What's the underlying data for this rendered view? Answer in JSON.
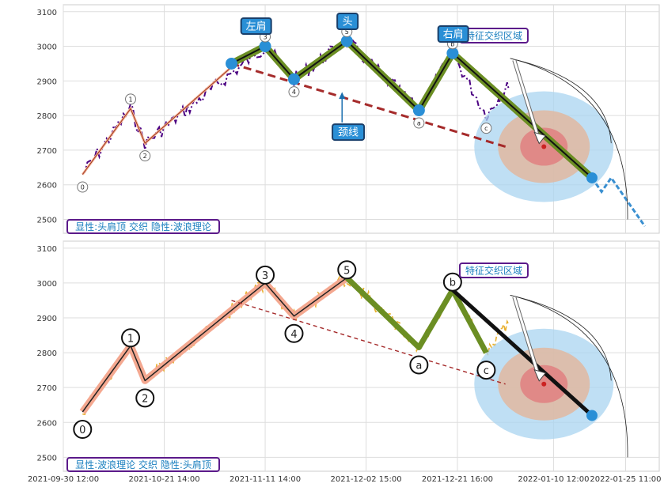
{
  "chart_data": [
    {
      "type": "line",
      "panel": "top",
      "ylim": [
        2460,
        3120
      ],
      "yticks": [
        2500,
        2600,
        2700,
        2800,
        2900,
        3000,
        3100
      ],
      "grid": true,
      "price_series_color": "#4b0082",
      "series": [
        {
          "kind": "wave-upper",
          "color": "#e06040",
          "points": [
            [
              "2021-10-04",
              2630
            ],
            [
              "2021-10-14",
              2820
            ],
            [
              "2021-10-17",
              2720
            ],
            [
              "2021-11-04",
              2940
            ]
          ]
        },
        {
          "kind": "head-shoulders",
          "color": "#6b8e23",
          "points": [
            [
              "2021-11-04",
              2950
            ],
            [
              "2021-11-11",
              3000
            ],
            [
              "2021-11-17",
              2905
            ],
            [
              "2021-11-28",
              3015
            ],
            [
              "2021-12-13",
              2815
            ],
            [
              "2021-12-20",
              2980
            ],
            [
              "2022-01-18",
              2620
            ]
          ]
        },
        {
          "kind": "neckline",
          "color": "#a52a2a",
          "points": [
            [
              "2021-11-04",
              2950
            ],
            [
              "2021-12-31",
              2710
            ]
          ]
        },
        {
          "kind": "forecast",
          "color": "#3a8fd0",
          "points": [
            [
              "2022-01-18",
              2620
            ],
            [
              "2022-01-20",
              2580
            ],
            [
              "2022-01-22",
              2620
            ],
            [
              "2022-01-29",
              2480
            ]
          ]
        }
      ],
      "target": {
        "x": "2022-01-08",
        "y": 2710
      },
      "labels": {
        "left_shoulder": "左肩",
        "head": "头",
        "right_shoulder": "右肩",
        "neckline": "颈线",
        "overlap_zone": "特征交织区域",
        "footer": "显性:头肩顶 交织 隐性:波浪理论"
      },
      "wave_points": [
        {
          "label": "0",
          "x": "2021-10-04",
          "y": 2630
        },
        {
          "label": "1",
          "x": "2021-10-14",
          "y": 2820
        },
        {
          "label": "2",
          "x": "2021-10-17",
          "y": 2720
        },
        {
          "label": "3",
          "x": "2021-11-11",
          "y": 3000
        },
        {
          "label": "4",
          "x": "2021-11-17",
          "y": 2905
        },
        {
          "label": "5",
          "x": "2021-11-28",
          "y": 3015
        },
        {
          "label": "a",
          "x": "2021-12-13",
          "y": 2815
        },
        {
          "label": "b",
          "x": "2021-12-20",
          "y": 2980
        },
        {
          "label": "c",
          "x": "2021-12-27",
          "y": 2800
        }
      ]
    },
    {
      "type": "line",
      "panel": "bottom",
      "ylim": [
        2460,
        3120
      ],
      "yticks": [
        2500,
        2600,
        2700,
        2800,
        2900,
        3000,
        3100
      ],
      "xlim": [
        "2021-09-30",
        "2022-02-01"
      ],
      "xticks": [
        "2021-09-30 12:00",
        "2021-10-21 14:00",
        "2021-11-11 14:00",
        "2021-12-02 15:00",
        "2021-12-21 16:00",
        "2022-01-10 12:00",
        "2022-01-25 11:00"
      ],
      "grid": true,
      "price_series_color": "#e8b030",
      "series": [
        {
          "kind": "wave-impulse",
          "color": "#f08060",
          "points": [
            [
              "2021-10-04",
              2630
            ],
            [
              "2021-10-14",
              2820
            ],
            [
              "2021-10-17",
              2720
            ],
            [
              "2021-11-11",
              3000
            ],
            [
              "2021-11-17",
              2905
            ],
            [
              "2021-11-28",
              3015
            ]
          ]
        },
        {
          "kind": "wave-correction",
          "color": "#6b8e23",
          "points": [
            [
              "2021-11-28",
              3015
            ],
            [
              "2021-12-13",
              2815
            ],
            [
              "2021-12-20",
              2980
            ],
            [
              "2021-12-27",
              2800
            ]
          ]
        },
        {
          "kind": "forecast",
          "color": "#111111",
          "points": [
            [
              "2021-12-20",
              2980
            ],
            [
              "2022-01-18",
              2620
            ]
          ]
        },
        {
          "kind": "neckline",
          "color": "#a52a2a",
          "points": [
            [
              "2021-11-04",
              2950
            ],
            [
              "2021-12-31",
              2710
            ]
          ]
        }
      ],
      "target": {
        "x": "2022-01-08",
        "y": 2710
      },
      "labels": {
        "overlap_zone": "特征交织区域",
        "footer": "显性:波浪理论 交织 隐性:头肩顶"
      },
      "wave_points": [
        {
          "label": "0",
          "x": "2021-10-04",
          "y": 2630
        },
        {
          "label": "1",
          "x": "2021-10-14",
          "y": 2820
        },
        {
          "label": "2",
          "x": "2021-10-17",
          "y": 2720
        },
        {
          "label": "3",
          "x": "2021-11-11",
          "y": 3000
        },
        {
          "label": "4",
          "x": "2021-11-17",
          "y": 2905
        },
        {
          "label": "5",
          "x": "2021-11-28",
          "y": 3015
        },
        {
          "label": "a",
          "x": "2021-12-13",
          "y": 2815
        },
        {
          "label": "b",
          "x": "2021-12-20",
          "y": 2980
        },
        {
          "label": "c",
          "x": "2021-12-27",
          "y": 2800
        }
      ]
    }
  ]
}
